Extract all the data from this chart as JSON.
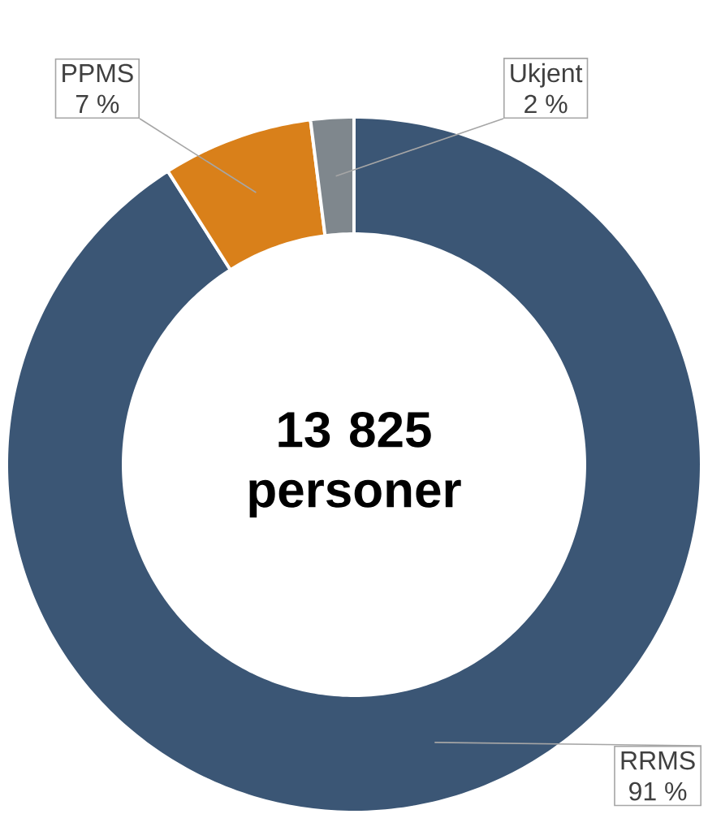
{
  "chart_data": {
    "type": "donut",
    "categories": [
      "RRMS",
      "PPMS",
      "Ukjent"
    ],
    "values": [
      91,
      7,
      2
    ],
    "colors": [
      "#3b5675",
      "#d9801a",
      "#7f878d"
    ],
    "value_labels": [
      "91 %",
      "7 %",
      "2 %"
    ],
    "annotations": [
      "13 825 personer"
    ]
  }
}
